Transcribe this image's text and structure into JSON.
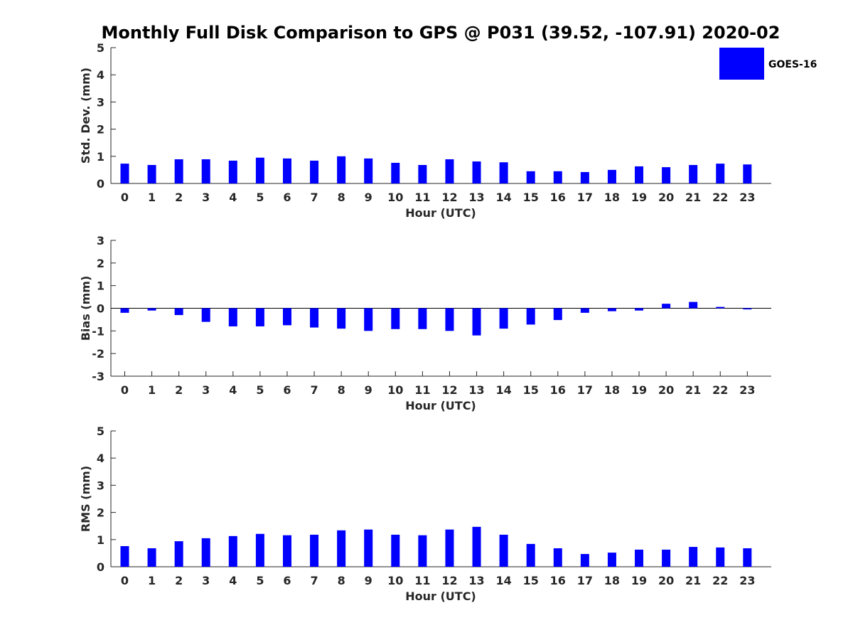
{
  "figure": {
    "title": "Monthly Full Disk Comparison to GPS @ P031 (39.52, -107.91) 2020-02",
    "legend": {
      "label": "GOES-16",
      "color": "#0000ff",
      "placement": "top-right"
    }
  },
  "chart_data": [
    {
      "type": "bar",
      "ylabel": "Std. Dev. (mm)",
      "xlabel": "Hour (UTC)",
      "ylim": [
        0,
        5
      ],
      "yticks": [
        0,
        1,
        2,
        3,
        4,
        5
      ],
      "categories": [
        "0",
        "1",
        "2",
        "3",
        "4",
        "5",
        "6",
        "7",
        "8",
        "9",
        "10",
        "11",
        "12",
        "13",
        "14",
        "15",
        "16",
        "17",
        "18",
        "19",
        "20",
        "21",
        "22",
        "23"
      ],
      "series": [
        {
          "name": "GOES-16",
          "color": "#0000ff",
          "values": [
            0.73,
            0.68,
            0.89,
            0.89,
            0.84,
            0.95,
            0.92,
            0.84,
            1.0,
            0.92,
            0.76,
            0.68,
            0.89,
            0.81,
            0.78,
            0.45,
            0.45,
            0.42,
            0.5,
            0.63,
            0.6,
            0.68,
            0.73,
            0.7
          ]
        }
      ],
      "grid": false
    },
    {
      "type": "bar",
      "ylabel": "Bias (mm)",
      "xlabel": "Hour (UTC)",
      "ylim": [
        -3,
        3
      ],
      "yticks": [
        -3,
        -2,
        -1,
        0,
        1,
        2,
        3
      ],
      "categories": [
        "0",
        "1",
        "2",
        "3",
        "4",
        "5",
        "6",
        "7",
        "8",
        "9",
        "10",
        "11",
        "12",
        "13",
        "14",
        "15",
        "16",
        "17",
        "18",
        "19",
        "20",
        "21",
        "22",
        "23"
      ],
      "series": [
        {
          "name": "GOES-16",
          "color": "#0000ff",
          "values": [
            -0.2,
            -0.1,
            -0.3,
            -0.6,
            -0.8,
            -0.8,
            -0.75,
            -0.85,
            -0.9,
            -1.0,
            -0.92,
            -0.92,
            -1.0,
            -1.2,
            -0.9,
            -0.72,
            -0.52,
            -0.2,
            -0.13,
            -0.1,
            0.2,
            0.28,
            0.06,
            -0.05
          ]
        }
      ],
      "grid": false
    },
    {
      "type": "bar",
      "ylabel": "RMS (mm)",
      "xlabel": "Hour (UTC)",
      "ylim": [
        0,
        5
      ],
      "yticks": [
        0,
        1,
        2,
        3,
        4,
        5
      ],
      "categories": [
        "0",
        "1",
        "2",
        "3",
        "4",
        "5",
        "6",
        "7",
        "8",
        "9",
        "10",
        "11",
        "12",
        "13",
        "14",
        "15",
        "16",
        "17",
        "18",
        "19",
        "20",
        "21",
        "22",
        "23"
      ],
      "series": [
        {
          "name": "GOES-16",
          "color": "#0000ff",
          "values": [
            0.76,
            0.68,
            0.94,
            1.05,
            1.13,
            1.21,
            1.16,
            1.18,
            1.34,
            1.37,
            1.18,
            1.16,
            1.37,
            1.47,
            1.18,
            0.84,
            0.68,
            0.47,
            0.52,
            0.63,
            0.63,
            0.73,
            0.71,
            0.68
          ]
        }
      ],
      "grid": false
    }
  ]
}
